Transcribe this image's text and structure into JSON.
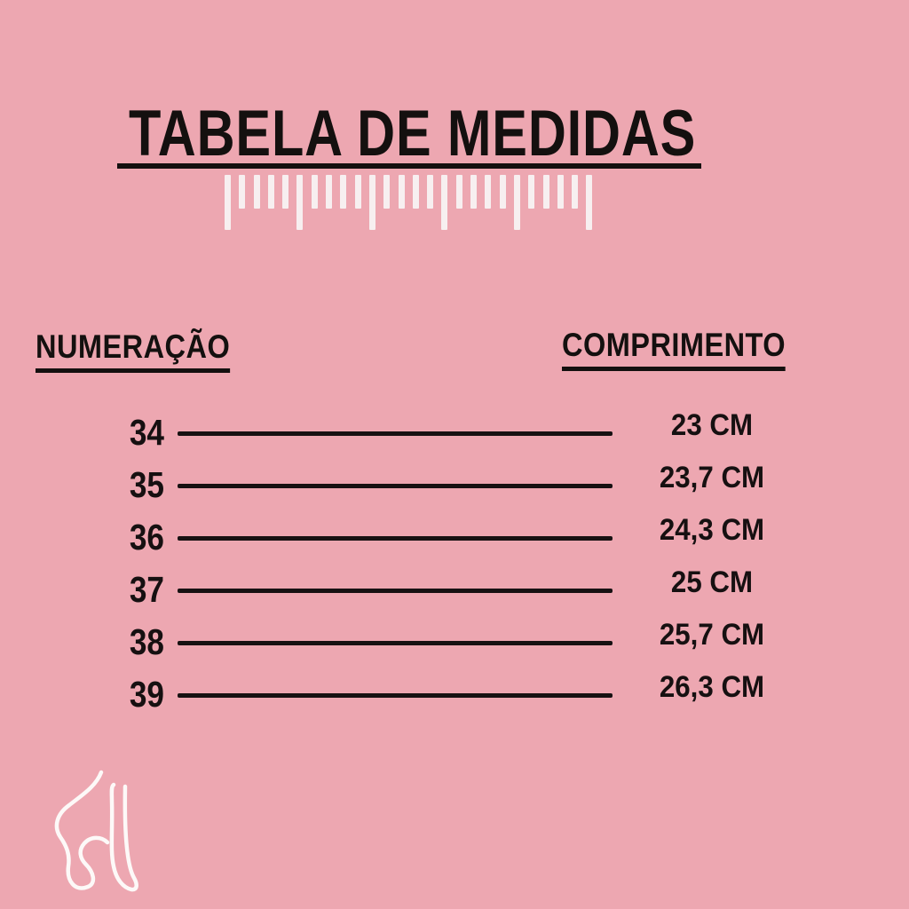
{
  "title": {
    "text": "TABELA DE MEDIDAS"
  },
  "ruler": {
    "tick_count": 26,
    "major_every": 5
  },
  "table": {
    "col_left": "NUMERAÇÃO",
    "col_right": "COMPRIMENTO",
    "rows": [
      {
        "size": "34",
        "length": "23 CM"
      },
      {
        "size": "35",
        "length": "23,7 CM"
      },
      {
        "size": "36",
        "length": "24,3 CM"
      },
      {
        "size": "37",
        "length": "25 CM"
      },
      {
        "size": "38",
        "length": "25,7 CM"
      },
      {
        "size": "39",
        "length": "26,3 CM"
      }
    ]
  },
  "chart_data": {
    "type": "table",
    "title": "TABELA DE MEDIDAS",
    "columns": [
      "NUMERAÇÃO",
      "COMPRIMENTO"
    ],
    "rows": [
      [
        "34",
        "23 CM"
      ],
      [
        "35",
        "23,7 CM"
      ],
      [
        "36",
        "24,3 CM"
      ],
      [
        "37",
        "25 CM"
      ],
      [
        "38",
        "25,7 CM"
      ],
      [
        "39",
        "26,3 CM"
      ]
    ],
    "sizes": [
      34,
      35,
      36,
      37,
      38,
      39
    ],
    "lengths_cm": [
      23,
      23.7,
      24.3,
      25,
      25.7,
      26.3
    ]
  },
  "colors": {
    "background": "#eda7b1",
    "ink": "#14100f",
    "ruler_tick": "#f7eff0",
    "logo_stroke": "#fdf9f8"
  },
  "icons": {
    "feet_logo": "feet-outline-logo",
    "ruler": "ruler-tick-marks"
  }
}
